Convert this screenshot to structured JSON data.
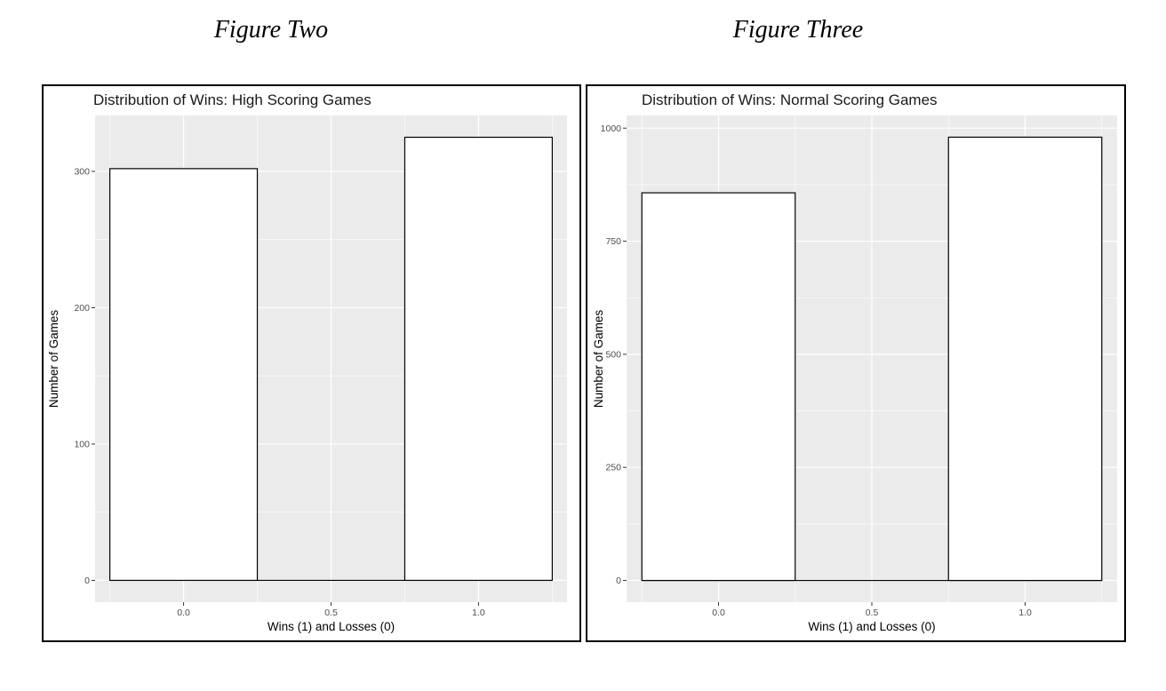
{
  "captions": {
    "left": "Figure Two",
    "right": "Figure Three"
  },
  "colors": {
    "panel_background": "#EBEBEB",
    "grid_line": "#FFFFFF",
    "bar_fill": "#FFFFFF",
    "bar_outline": "#000000"
  },
  "chart_data": [
    {
      "type": "bar",
      "title": "Distribution of Wins: High Scoring Games",
      "xlabel": "Wins (1) and Losses (0)",
      "ylabel": "Number of Games",
      "x": [
        0,
        1
      ],
      "values": [
        302,
        325
      ],
      "bar_width": 0.5,
      "xlim": [
        -0.3,
        1.3
      ],
      "ylim": [
        -16,
        341
      ],
      "x_ticks": [
        0,
        0.5,
        1
      ],
      "x_tick_labels": [
        "0.0",
        "0.5",
        "1.0"
      ],
      "y_ticks": [
        0,
        100,
        200,
        300
      ],
      "y_tick_labels": [
        "0",
        "100",
        "200",
        "300"
      ],
      "y_minor_ticks": [
        50,
        150,
        250
      ],
      "grid": true,
      "legend": "none"
    },
    {
      "type": "bar",
      "title": "Distribution of Wins: Normal Scoring Games",
      "xlabel": "Wins (1) and Losses (0)",
      "ylabel": "Number of Games",
      "x": [
        0,
        1
      ],
      "values": [
        857,
        980
      ],
      "bar_width": 0.5,
      "xlim": [
        -0.3,
        1.3
      ],
      "ylim": [
        -48,
        1028
      ],
      "x_ticks": [
        0,
        0.5,
        1
      ],
      "x_tick_labels": [
        "0.0",
        "0.5",
        "1.0"
      ],
      "y_ticks": [
        0,
        250,
        500,
        750,
        1000
      ],
      "y_tick_labels": [
        "0",
        "250",
        "500",
        "750",
        "1000"
      ],
      "y_minor_ticks": [
        125,
        375,
        625,
        875
      ],
      "grid": true,
      "legend": "none"
    }
  ]
}
